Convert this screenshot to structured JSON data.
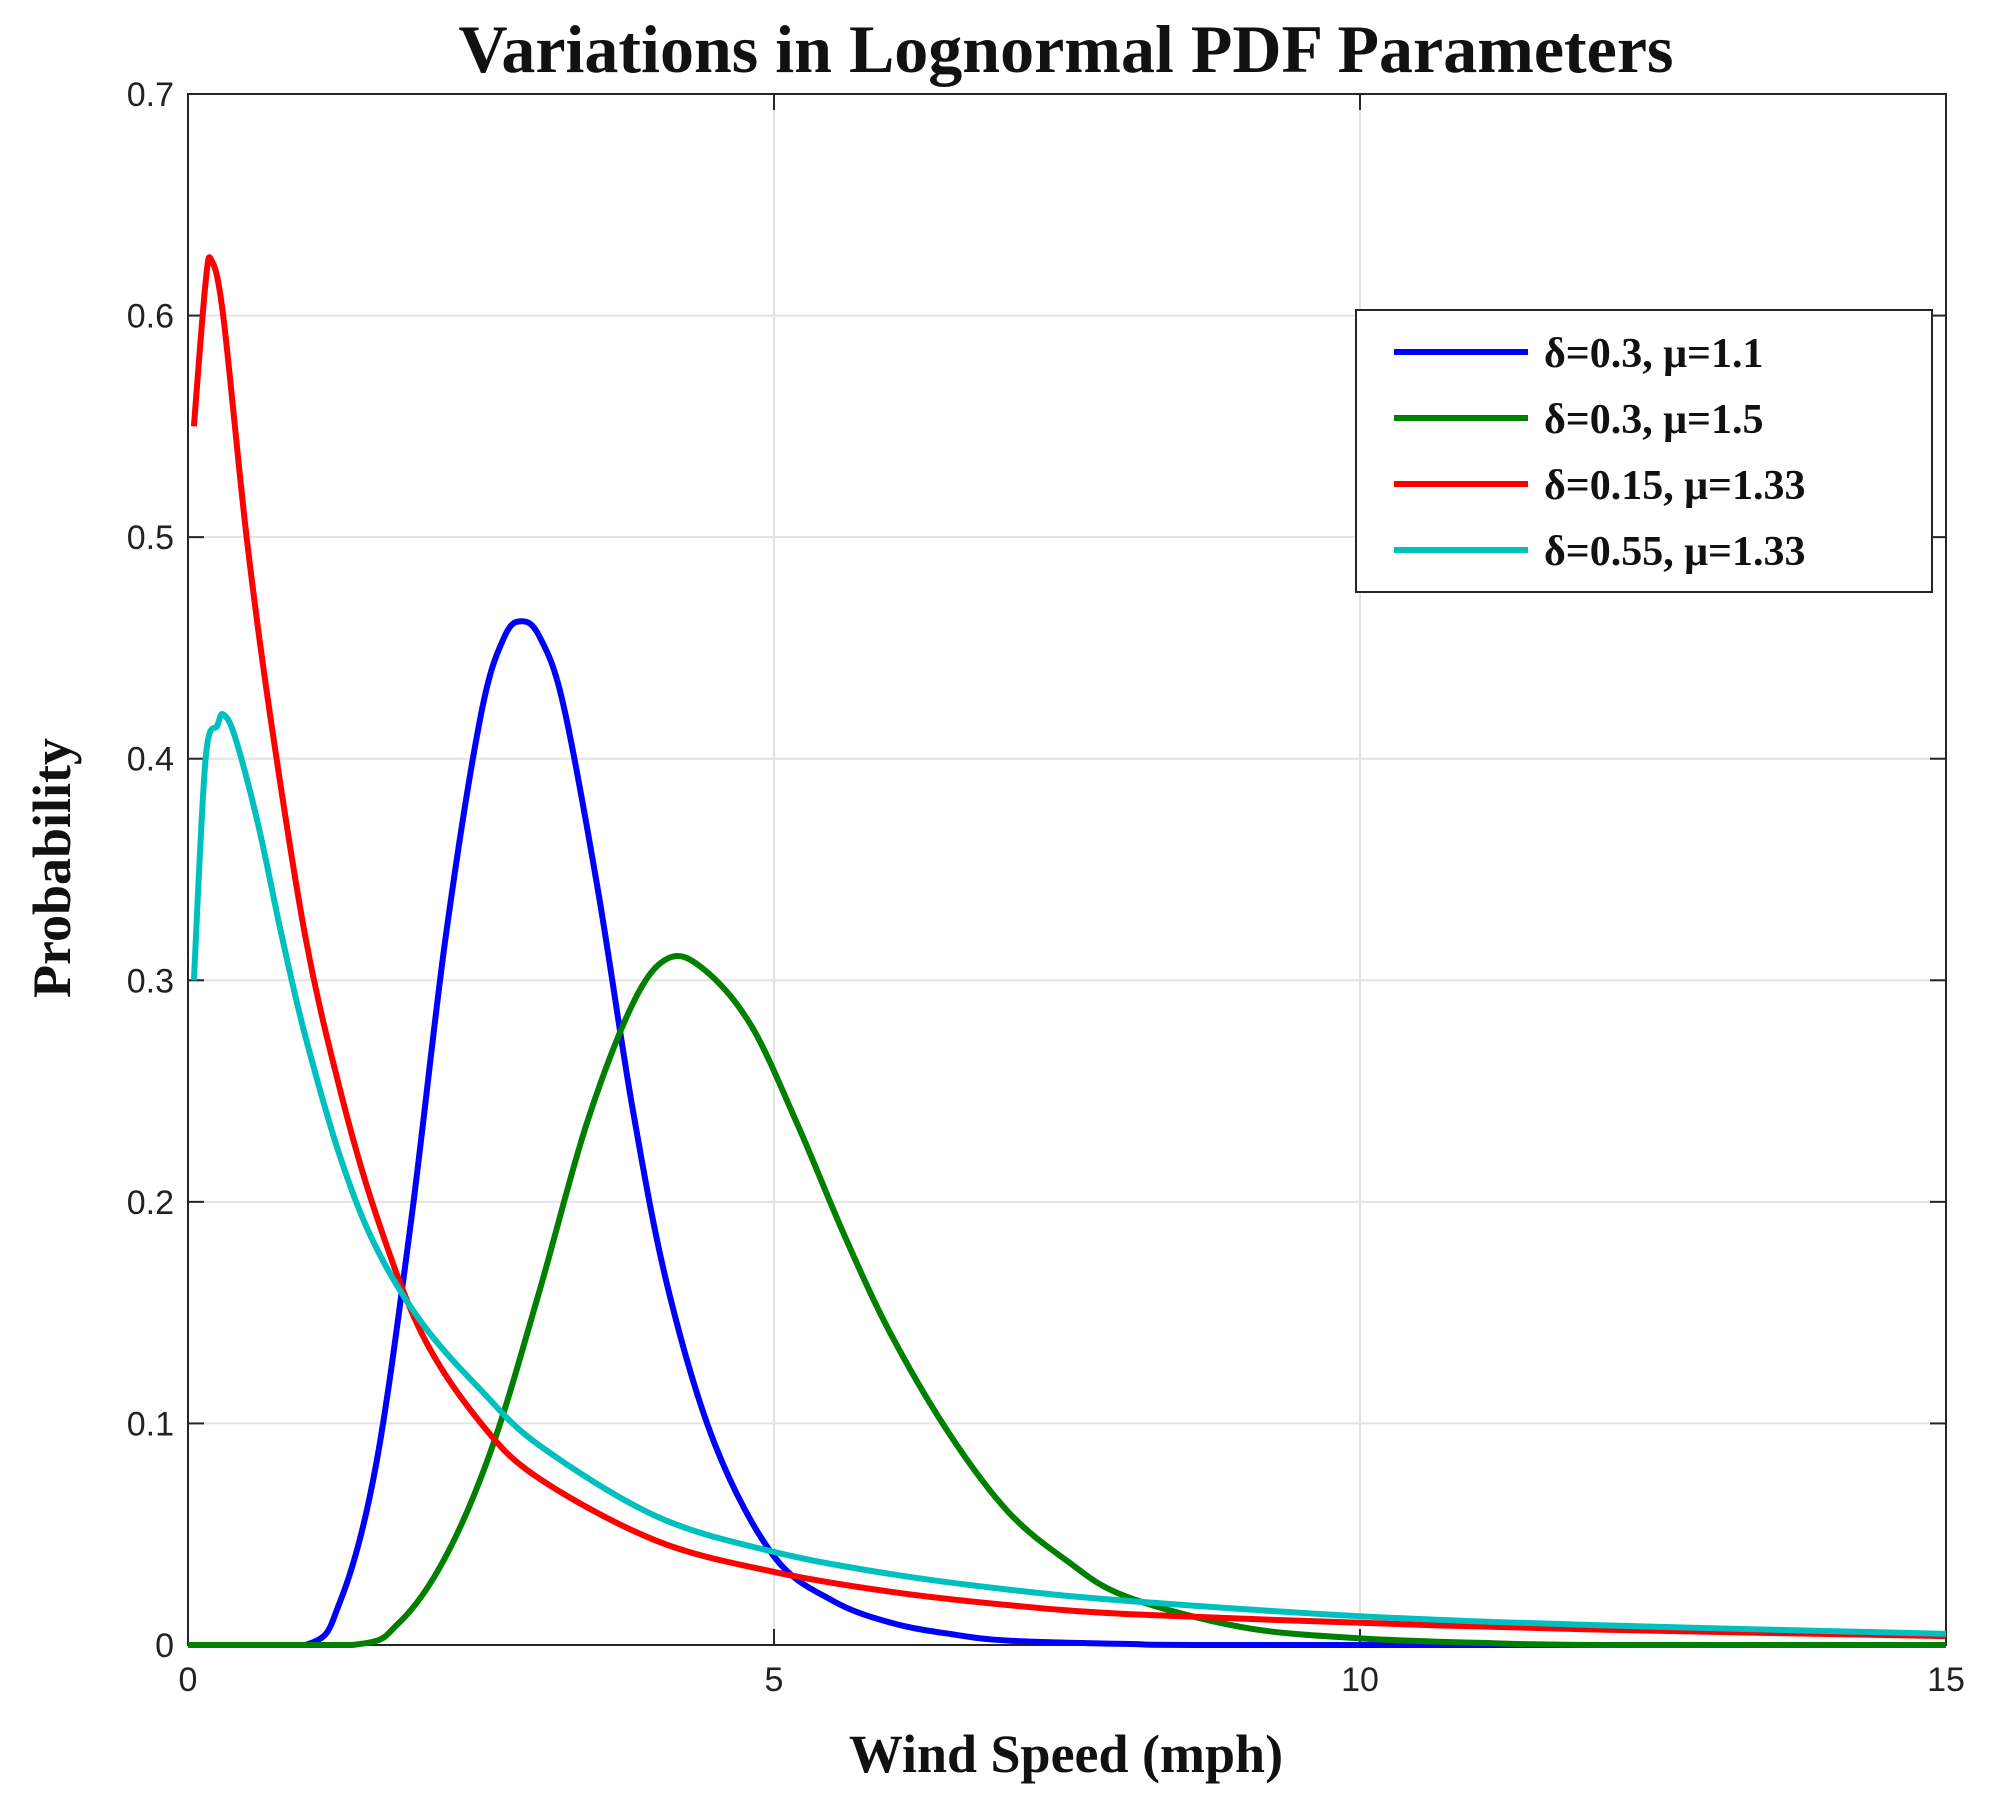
{
  "chart_data": {
    "type": "line",
    "title": "Variations in Lognormal PDF Parameters",
    "xlabel": "Wind Speed (mph)",
    "ylabel": "Probability",
    "xlim": [
      0,
      15
    ],
    "ylim": [
      0,
      0.7
    ],
    "x_ticks": [
      0,
      5,
      10,
      15
    ],
    "y_ticks": [
      0,
      0.1,
      0.2,
      0.3,
      0.4,
      0.5,
      0.6,
      0.7
    ],
    "x_tick_labels": [
      "0",
      "5",
      "10",
      "15"
    ],
    "y_tick_labels": [
      "0",
      "0.1",
      "0.2",
      "0.3",
      "0.4",
      "0.5",
      "0.6",
      "0.7"
    ],
    "grid": true,
    "legend_position": "top-right",
    "series": [
      {
        "name": "δ=0.3, μ=1.1",
        "color": "#0000ff",
        "x": [
          0,
          1.0,
          1.3,
          1.6,
          1.9,
          2.2,
          2.5,
          2.7,
          2.85,
          3.0,
          3.2,
          3.5,
          3.8,
          4.1,
          4.5,
          5.0,
          5.5,
          6.0,
          6.5,
          7.0,
          8.0,
          9.0,
          15
        ],
        "y": [
          0,
          0.0,
          0.02,
          0.08,
          0.19,
          0.32,
          0.42,
          0.455,
          0.462,
          0.455,
          0.425,
          0.34,
          0.24,
          0.16,
          0.09,
          0.04,
          0.02,
          0.01,
          0.005,
          0.002,
          0.0005,
          0,
          0
        ]
      },
      {
        "name": "δ=0.3, μ=1.5",
        "color": "#007f00",
        "x": [
          0,
          1.4,
          1.8,
          2.2,
          2.6,
          3.0,
          3.4,
          3.8,
          4.1,
          4.4,
          4.8,
          5.2,
          5.6,
          6.0,
          6.5,
          7.0,
          7.5,
          8.0,
          9.0,
          10.0,
          11.0,
          12.0,
          15
        ],
        "y": [
          0,
          0.0,
          0.01,
          0.04,
          0.09,
          0.16,
          0.235,
          0.29,
          0.31,
          0.305,
          0.28,
          0.235,
          0.185,
          0.14,
          0.095,
          0.06,
          0.038,
          0.022,
          0.008,
          0.003,
          0.001,
          0,
          0
        ]
      },
      {
        "name": "δ=0.15, μ=1.33",
        "color": "#ff0000",
        "x": [
          0.05,
          0.15,
          0.2,
          0.3,
          0.5,
          0.7,
          1.0,
          1.3,
          1.6,
          2.0,
          2.5,
          3.0,
          4.0,
          5.0,
          6.0,
          7.0,
          8.0,
          10.0,
          12.0,
          15.0
        ],
        "y": [
          0.55,
          0.615,
          0.625,
          0.6,
          0.5,
          0.42,
          0.32,
          0.25,
          0.195,
          0.14,
          0.1,
          0.075,
          0.047,
          0.033,
          0.024,
          0.018,
          0.014,
          0.01,
          0.007,
          0.004
        ]
      },
      {
        "name": "δ=0.55, μ=1.33",
        "color": "#00bfbf",
        "x": [
          0.05,
          0.15,
          0.25,
          0.3,
          0.4,
          0.6,
          0.8,
          1.0,
          1.3,
          1.6,
          2.0,
          2.5,
          3.0,
          4.0,
          5.0,
          6.0,
          7.0,
          8.0,
          10.0,
          12.0,
          15.0
        ],
        "y": [
          0.3,
          0.4,
          0.415,
          0.42,
          0.41,
          0.37,
          0.32,
          0.275,
          0.22,
          0.18,
          0.145,
          0.115,
          0.09,
          0.058,
          0.042,
          0.032,
          0.025,
          0.02,
          0.013,
          0.009,
          0.005
        ]
      }
    ]
  }
}
